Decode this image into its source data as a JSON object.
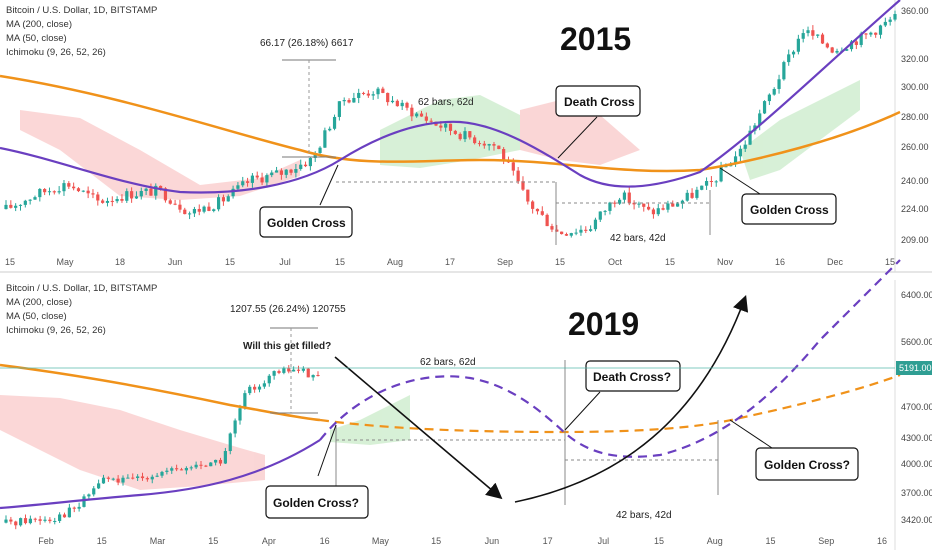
{
  "chart_data": [
    {
      "type": "candlestick",
      "year_label": "2015",
      "legend": [
        "Bitcoin / U.S. Dollar, 1D, BITSTAMP",
        "MA (200, close)",
        "MA (50, close)",
        "Ichimoku (9, 26, 52, 26)"
      ],
      "x_ticks": [
        "15",
        "May",
        "18",
        "Jun",
        "15",
        "Jul",
        "15",
        "Aug",
        "17",
        "Sep",
        "15",
        "Oct",
        "15",
        "Nov",
        "16",
        "Dec",
        "15"
      ],
      "y_ticks": [
        "360.00",
        "320.00",
        "300.00",
        "280.00",
        "260.00",
        "240.00",
        "224.00",
        "209.00"
      ],
      "ylim": [
        205,
        370
      ],
      "log_scale": true,
      "annotations": {
        "range_label": "66.17 (26.18%) 6617",
        "bars_top": "62 bars, 62d",
        "bars_bottom": "42 bars, 42d"
      },
      "callouts": [
        "Death Cross",
        "Golden Cross",
        "Golden Cross"
      ],
      "ma200": [
        300,
        294,
        288,
        283,
        278,
        272,
        267,
        262,
        257,
        253,
        251,
        250,
        250,
        250,
        250,
        249,
        248,
        248,
        248,
        251,
        258,
        266,
        273,
        282
      ],
      "ma50": [
        258,
        253,
        246,
        240,
        236,
        234,
        234,
        238,
        250,
        268,
        278,
        272,
        259,
        244,
        237,
        238,
        242,
        252,
        268,
        285,
        303,
        320,
        340,
        372
      ],
      "price": [
        228,
        236,
        242,
        232,
        236,
        238,
        226,
        232,
        244,
        248,
        256,
        294,
        300,
        288,
        278,
        270,
        264,
        232,
        216,
        218,
        236,
        226,
        232,
        242,
        262,
        300,
        345,
        330,
        340,
        355
      ]
    },
    {
      "type": "candlestick",
      "year_label": "2019",
      "legend": [
        "Bitcoin / U.S. Dollar, 1D, BITSTAMP",
        "MA (200, close)",
        "MA (50, close)",
        "Ichimoku (9, 26, 52, 26)"
      ],
      "x_ticks": [
        "Feb",
        "15",
        "Mar",
        "15",
        "Apr",
        "16",
        "May",
        "15",
        "Jun",
        "17",
        "Jul",
        "15",
        "Aug",
        "15",
        "Sep",
        "16"
      ],
      "y_ticks": [
        "6400.00",
        "5600.00",
        "4700.00",
        "4300.00",
        "4000.00",
        "3700.00",
        "3420.00"
      ],
      "price_label": "5191.00",
      "ylim": [
        3380,
        6700
      ],
      "log_scale": true,
      "annotations": {
        "range_label": "1207.55 (26.24%) 120755",
        "question": "Will this get filled?",
        "bars_top": "62 bars, 62d",
        "bars_bottom": "42 bars, 42d"
      },
      "callouts": [
        "Death Cross?",
        "Golden Cross?",
        "Golden Cross?"
      ],
      "ma200": [
        4950,
        4850,
        4760,
        4680,
        4600
      ],
      "ma50": [
        3560,
        3590,
        3640,
        3700,
        3800,
        3920,
        4060,
        4200
      ],
      "price": [
        3450,
        3480,
        3500,
        3600,
        3900,
        3870,
        3950,
        3980,
        4050,
        4100,
        4950,
        5200,
        5300,
        5191
      ]
    }
  ]
}
